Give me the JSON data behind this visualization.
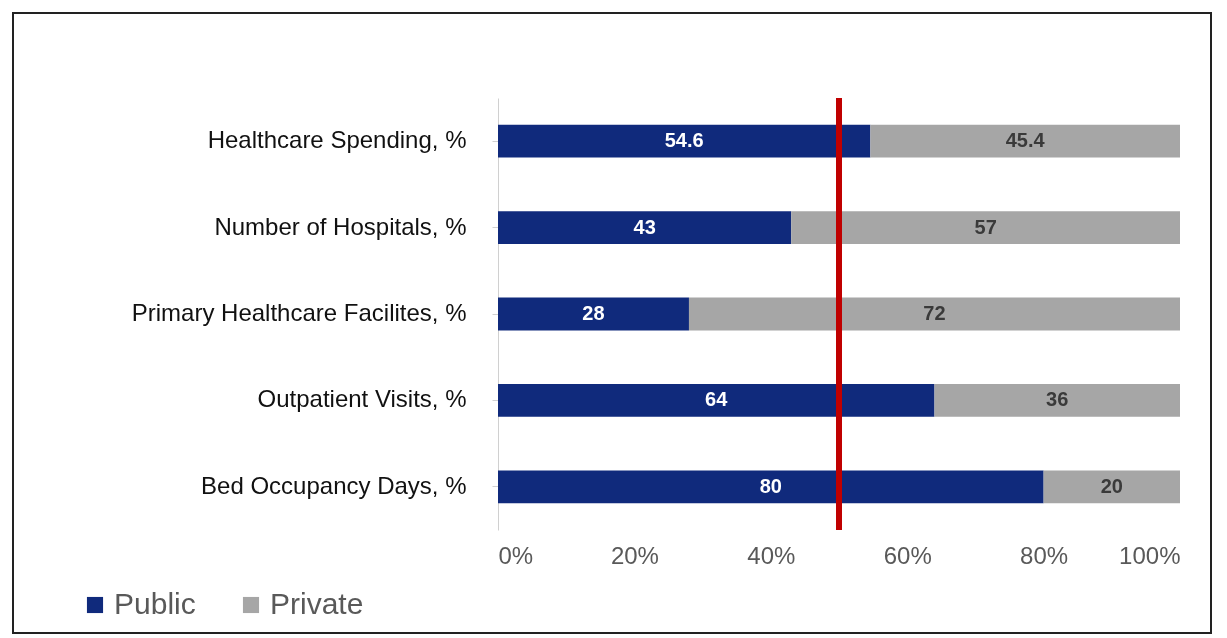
{
  "chart_data": {
    "type": "bar",
    "orientation": "horizontal",
    "stacked": true,
    "data_labels": true,
    "categories": [
      "Healthcare Spending, %",
      "Number of Hospitals, %",
      "Primary Healthcare Facilites, %",
      "Outpatient Visits, %",
      "Bed Occupancy Days, %"
    ],
    "series": [
      {
        "name": "Public",
        "color": "#102a7c",
        "values": [
          54.6,
          43,
          28,
          64,
          80
        ]
      },
      {
        "name": "Private",
        "color": "#a6a6a6",
        "values": [
          45.4,
          57,
          72,
          36,
          20
        ]
      }
    ],
    "xlim": [
      0,
      100
    ],
    "xticks": [
      {
        "value": 0,
        "label": "0%"
      },
      {
        "value": 20,
        "label": "20%"
      },
      {
        "value": 40,
        "label": "40%"
      },
      {
        "value": 60,
        "label": "60%"
      },
      {
        "value": 80,
        "label": "80%"
      },
      {
        "value": 100,
        "label": "100%"
      }
    ],
    "ref_lines": [
      {
        "axis": "x",
        "value": 50,
        "color": "#c00000"
      }
    ],
    "legend": "bottom left",
    "grid": false
  }
}
